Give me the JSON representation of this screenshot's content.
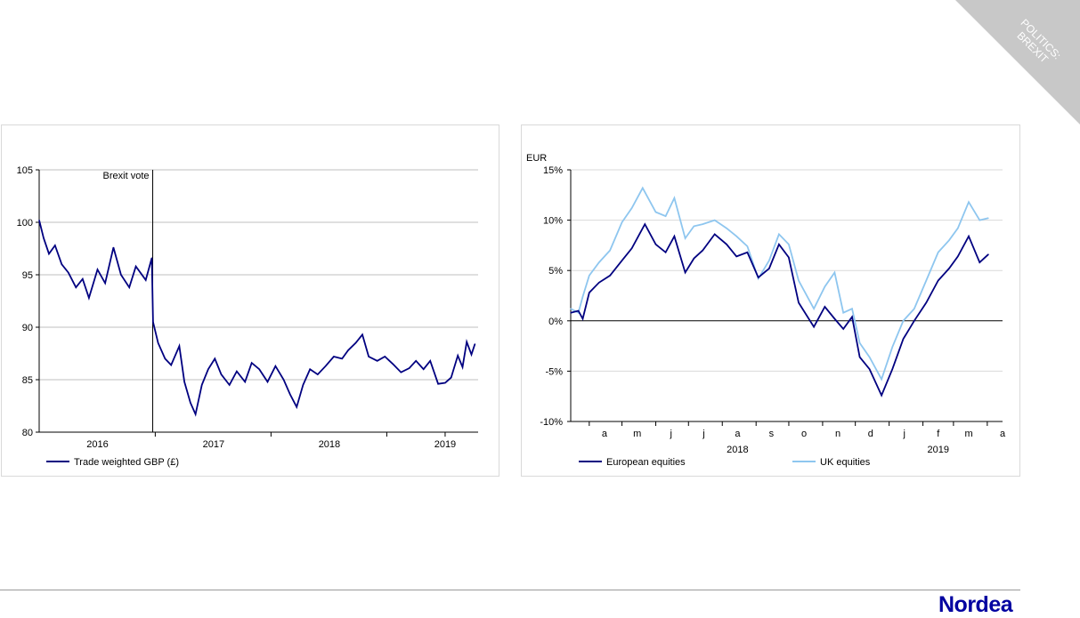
{
  "ribbon": {
    "line1": "POLITICS:",
    "line2": "BREXIT"
  },
  "logo": "Nordea",
  "colors": {
    "navy": "#000080",
    "light_blue": "#8ec6ef",
    "grid": "#bfbfbf",
    "ribbon": "#c8c8c8"
  },
  "chart_data": [
    {
      "type": "line",
      "ylim": [
        80,
        105
      ],
      "yticks": [
        "80",
        "85",
        "90",
        "95",
        "100",
        "105"
      ],
      "xlim": [
        "2015-07-01",
        "2019-04-15"
      ],
      "xticks_labels": [
        {
          "label": "2016",
          "date": "2016-01-01"
        },
        {
          "label": "2017",
          "date": "2017-01-01"
        },
        {
          "label": "2018",
          "date": "2018-01-01"
        },
        {
          "label": "2019",
          "date": "2019-01-01"
        }
      ],
      "year_separators": [
        "2016-07-01",
        "2017-07-01",
        "2018-07-01",
        "2019-01-01"
      ],
      "annotation": {
        "text": "Brexit vote",
        "date": "2016-06-23"
      },
      "grid": true,
      "legend": "bottom-left",
      "series": [
        {
          "name": "Trade weighted GBP (£)",
          "color": "#000080",
          "points": [
            [
              "2015-07-01",
              100.2
            ],
            [
              "2015-07-15",
              98.5
            ],
            [
              "2015-08-01",
              97.0
            ],
            [
              "2015-08-20",
              97.8
            ],
            [
              "2015-09-10",
              96.0
            ],
            [
              "2015-10-01",
              95.2
            ],
            [
              "2015-10-25",
              93.8
            ],
            [
              "2015-11-15",
              94.6
            ],
            [
              "2015-12-05",
              92.8
            ],
            [
              "2016-01-01",
              95.5
            ],
            [
              "2016-01-25",
              94.2
            ],
            [
              "2016-02-20",
              97.6
            ],
            [
              "2016-03-15",
              95.0
            ],
            [
              "2016-04-10",
              93.8
            ],
            [
              "2016-05-01",
              95.8
            ],
            [
              "2016-06-01",
              94.5
            ],
            [
              "2016-06-20",
              96.6
            ],
            [
              "2016-06-24",
              90.5
            ],
            [
              "2016-07-10",
              88.5
            ],
            [
              "2016-08-01",
              87.0
            ],
            [
              "2016-08-20",
              86.4
            ],
            [
              "2016-09-15",
              88.2
            ],
            [
              "2016-10-01",
              84.8
            ],
            [
              "2016-10-20",
              82.8
            ],
            [
              "2016-11-05",
              81.7
            ],
            [
              "2016-11-25",
              84.5
            ],
            [
              "2016-12-15",
              86.0
            ],
            [
              "2017-01-05",
              87.0
            ],
            [
              "2017-01-25",
              85.5
            ],
            [
              "2017-02-20",
              84.5
            ],
            [
              "2017-03-15",
              85.8
            ],
            [
              "2017-04-10",
              84.8
            ],
            [
              "2017-05-01",
              86.6
            ],
            [
              "2017-05-25",
              86.0
            ],
            [
              "2017-06-20",
              84.8
            ],
            [
              "2017-07-15",
              86.3
            ],
            [
              "2017-08-10",
              85.0
            ],
            [
              "2017-08-30",
              83.6
            ],
            [
              "2017-09-20",
              82.4
            ],
            [
              "2017-10-10",
              84.5
            ],
            [
              "2017-11-01",
              86.0
            ],
            [
              "2017-11-25",
              85.5
            ],
            [
              "2017-12-20",
              86.3
            ],
            [
              "2018-01-15",
              87.2
            ],
            [
              "2018-02-10",
              87.0
            ],
            [
              "2018-03-01",
              87.8
            ],
            [
              "2018-03-25",
              88.5
            ],
            [
              "2018-04-15",
              89.3
            ],
            [
              "2018-05-05",
              87.2
            ],
            [
              "2018-06-01",
              86.8
            ],
            [
              "2018-06-25",
              87.2
            ],
            [
              "2018-07-20",
              86.5
            ],
            [
              "2018-08-15",
              85.7
            ],
            [
              "2018-09-10",
              86.1
            ],
            [
              "2018-10-01",
              86.8
            ],
            [
              "2018-10-25",
              86.0
            ],
            [
              "2018-11-15",
              86.8
            ],
            [
              "2018-12-10",
              84.6
            ],
            [
              "2019-01-01",
              84.7
            ],
            [
              "2019-01-20",
              85.2
            ],
            [
              "2019-02-10",
              87.3
            ],
            [
              "2019-02-25",
              86.2
            ],
            [
              "2019-03-10",
              88.6
            ],
            [
              "2019-03-25",
              87.4
            ],
            [
              "2019-04-05",
              88.4
            ]
          ]
        }
      ]
    },
    {
      "type": "line",
      "ylabel": "EUR",
      "ylim": [
        -10,
        15
      ],
      "yticks": [
        "-10%",
        "-5%",
        "0%",
        "5%",
        "10%",
        "15%"
      ],
      "xlim": [
        "2018-03-15",
        "2019-04-15"
      ],
      "xticks_labels": [
        {
          "label": "a",
          "date": "2018-04-15"
        },
        {
          "label": "m",
          "date": "2018-05-15"
        },
        {
          "label": "j",
          "date": "2018-06-15"
        },
        {
          "label": "j",
          "date": "2018-07-15"
        },
        {
          "label": "a",
          "date": "2018-08-15"
        },
        {
          "label": "s",
          "date": "2018-09-15"
        },
        {
          "label": "o",
          "date": "2018-10-15"
        },
        {
          "label": "n",
          "date": "2018-11-15"
        },
        {
          "label": "d",
          "date": "2018-12-15"
        },
        {
          "label": "j",
          "date": "2019-01-15"
        },
        {
          "label": "f",
          "date": "2019-02-15"
        },
        {
          "label": "m",
          "date": "2019-03-15"
        },
        {
          "label": "a",
          "date": "2019-04-15"
        }
      ],
      "year_labels": [
        {
          "label": "2018",
          "date": "2018-08-15"
        },
        {
          "label": "2019",
          "date": "2019-02-15"
        }
      ],
      "grid": true,
      "legend": "bottom",
      "series": [
        {
          "name": "European equities",
          "color": "#000080",
          "points": [
            [
              "2018-03-15",
              0.8
            ],
            [
              "2018-03-22",
              1.0
            ],
            [
              "2018-03-26",
              0.2
            ],
            [
              "2018-04-01",
              2.8
            ],
            [
              "2018-04-10",
              3.8
            ],
            [
              "2018-04-20",
              4.5
            ],
            [
              "2018-05-01",
              6.0
            ],
            [
              "2018-05-10",
              7.2
            ],
            [
              "2018-05-22",
              9.6
            ],
            [
              "2018-06-01",
              7.6
            ],
            [
              "2018-06-10",
              6.8
            ],
            [
              "2018-06-18",
              8.4
            ],
            [
              "2018-06-28",
              4.8
            ],
            [
              "2018-07-06",
              6.2
            ],
            [
              "2018-07-14",
              7.0
            ],
            [
              "2018-07-25",
              8.6
            ],
            [
              "2018-08-05",
              7.6
            ],
            [
              "2018-08-14",
              6.4
            ],
            [
              "2018-08-24",
              6.8
            ],
            [
              "2018-09-03",
              4.3
            ],
            [
              "2018-09-13",
              5.2
            ],
            [
              "2018-09-22",
              7.6
            ],
            [
              "2018-10-01",
              6.3
            ],
            [
              "2018-10-10",
              1.8
            ],
            [
              "2018-10-24",
              -0.6
            ],
            [
              "2018-11-03",
              1.4
            ],
            [
              "2018-11-12",
              0.2
            ],
            [
              "2018-11-20",
              -0.8
            ],
            [
              "2018-11-28",
              0.4
            ],
            [
              "2018-12-05",
              -3.6
            ],
            [
              "2018-12-14",
              -4.8
            ],
            [
              "2018-12-25",
              -7.4
            ],
            [
              "2019-01-04",
              -4.8
            ],
            [
              "2019-01-14",
              -1.8
            ],
            [
              "2019-01-24",
              0.0
            ],
            [
              "2019-02-04",
              1.8
            ],
            [
              "2019-02-15",
              4.0
            ],
            [
              "2019-02-25",
              5.2
            ],
            [
              "2019-03-05",
              6.4
            ],
            [
              "2019-03-15",
              8.4
            ],
            [
              "2019-03-25",
              5.8
            ],
            [
              "2019-04-02",
              6.6
            ]
          ]
        },
        {
          "name": "UK equities",
          "color": "#8ec6ef",
          "points": [
            [
              "2018-03-15",
              1.2
            ],
            [
              "2018-03-22",
              0.8
            ],
            [
              "2018-03-26",
              2.4
            ],
            [
              "2018-04-01",
              4.5
            ],
            [
              "2018-04-10",
              5.8
            ],
            [
              "2018-04-20",
              7.0
            ],
            [
              "2018-05-01",
              9.8
            ],
            [
              "2018-05-10",
              11.2
            ],
            [
              "2018-05-20",
              13.2
            ],
            [
              "2018-06-01",
              10.8
            ],
            [
              "2018-06-10",
              10.4
            ],
            [
              "2018-06-18",
              12.2
            ],
            [
              "2018-06-28",
              8.2
            ],
            [
              "2018-07-06",
              9.4
            ],
            [
              "2018-07-14",
              9.6
            ],
            [
              "2018-07-25",
              10.0
            ],
            [
              "2018-08-05",
              9.2
            ],
            [
              "2018-08-14",
              8.4
            ],
            [
              "2018-08-24",
              7.4
            ],
            [
              "2018-09-03",
              4.2
            ],
            [
              "2018-09-13",
              6.0
            ],
            [
              "2018-09-22",
              8.6
            ],
            [
              "2018-10-01",
              7.6
            ],
            [
              "2018-10-10",
              4.0
            ],
            [
              "2018-10-24",
              1.2
            ],
            [
              "2018-11-03",
              3.4
            ],
            [
              "2018-11-12",
              4.8
            ],
            [
              "2018-11-20",
              0.8
            ],
            [
              "2018-11-28",
              1.2
            ],
            [
              "2018-12-05",
              -2.2
            ],
            [
              "2018-12-14",
              -3.6
            ],
            [
              "2018-12-25",
              -5.8
            ],
            [
              "2019-01-04",
              -2.6
            ],
            [
              "2019-01-14",
              0.0
            ],
            [
              "2019-01-24",
              1.2
            ],
            [
              "2019-02-04",
              4.0
            ],
            [
              "2019-02-15",
              6.8
            ],
            [
              "2019-02-25",
              8.0
            ],
            [
              "2019-03-05",
              9.2
            ],
            [
              "2019-03-15",
              11.8
            ],
            [
              "2019-03-25",
              10.0
            ],
            [
              "2019-04-02",
              10.2
            ]
          ]
        }
      ]
    }
  ]
}
